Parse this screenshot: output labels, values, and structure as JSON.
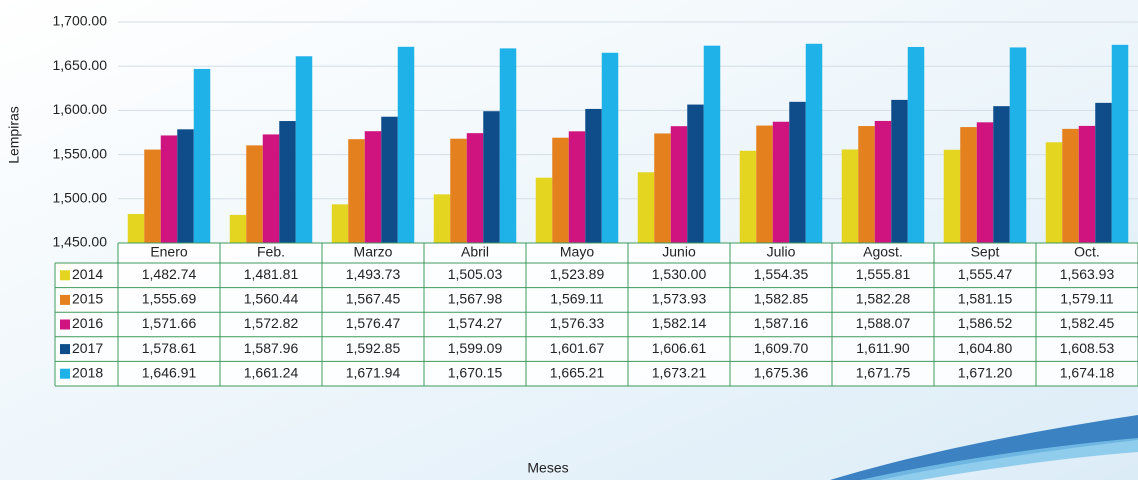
{
  "chart_data": {
    "type": "bar",
    "y_label": "Lempiras",
    "x_label": "Meses",
    "categories": [
      "Enero",
      "Feb.",
      "Marzo",
      "Abril",
      "Mayo",
      "Junio",
      "Julio",
      "Agost.",
      "Sept",
      "Oct."
    ],
    "series": [
      {
        "name": "2014",
        "color": "#e3d520",
        "values": [
          1482.74,
          1481.81,
          1493.73,
          1505.03,
          1523.89,
          1530.0,
          1554.35,
          1555.81,
          1555.47,
          1563.93
        ],
        "value_labels": [
          "1,482.74",
          "1,481.81",
          "1,493.73",
          "1,505.03",
          "1,523.89",
          "1,530.00",
          "1,554.35",
          "1,555.81",
          "1,555.47",
          "1,563.93"
        ]
      },
      {
        "name": "2015",
        "color": "#e5801f",
        "values": [
          1555.69,
          1560.44,
          1567.45,
          1567.98,
          1569.11,
          1573.93,
          1582.85,
          1582.28,
          1581.15,
          1579.11
        ],
        "value_labels": [
          "1,555.69",
          "1,560.44",
          "1,567.45",
          "1,567.98",
          "1,569.11",
          "1,573.93",
          "1,582.85",
          "1,582.28",
          "1,581.15",
          "1,579.11"
        ]
      },
      {
        "name": "2016",
        "color": "#d0147f",
        "values": [
          1571.66,
          1572.82,
          1576.47,
          1574.27,
          1576.33,
          1582.14,
          1587.16,
          1588.07,
          1586.52,
          1582.45
        ],
        "value_labels": [
          "1,571.66",
          "1,572.82",
          "1,576.47",
          "1,574.27",
          "1,576.33",
          "1,582.14",
          "1,587.16",
          "1,588.07",
          "1,586.52",
          "1,582.45"
        ]
      },
      {
        "name": "2017",
        "color": "#0f4d8a",
        "values": [
          1578.61,
          1587.96,
          1592.85,
          1599.09,
          1601.67,
          1606.61,
          1609.7,
          1611.9,
          1604.8,
          1608.53
        ],
        "value_labels": [
          "1,578.61",
          "1,587.96",
          "1,592.85",
          "1,599.09",
          "1,601.67",
          "1,606.61",
          "1,609.70",
          "1,611.90",
          "1,604.80",
          "1,608.53"
        ]
      },
      {
        "name": "2018",
        "color": "#1eb2e8",
        "values": [
          1646.91,
          1661.24,
          1671.94,
          1670.15,
          1665.21,
          1673.21,
          1675.36,
          1671.75,
          1671.2,
          1674.18
        ],
        "value_labels": [
          "1,646.91",
          "1,661.24",
          "1,671.94",
          "1,670.15",
          "1,665.21",
          "1,673.21",
          "1,675.36",
          "1,671.75",
          "1,671.20",
          "1,674.18"
        ]
      }
    ],
    "ylim": [
      1450,
      1700
    ],
    "yticks": [
      {
        "value": 1450,
        "label": "1,450.00"
      },
      {
        "value": 1500,
        "label": "1,500.00"
      },
      {
        "value": 1550,
        "label": "1,550.00"
      },
      {
        "value": 1600,
        "label": "1,600.00"
      },
      {
        "value": 1650,
        "label": "1,650.00"
      },
      {
        "value": 1700,
        "label": "1,700.00"
      }
    ],
    "grid": true
  }
}
